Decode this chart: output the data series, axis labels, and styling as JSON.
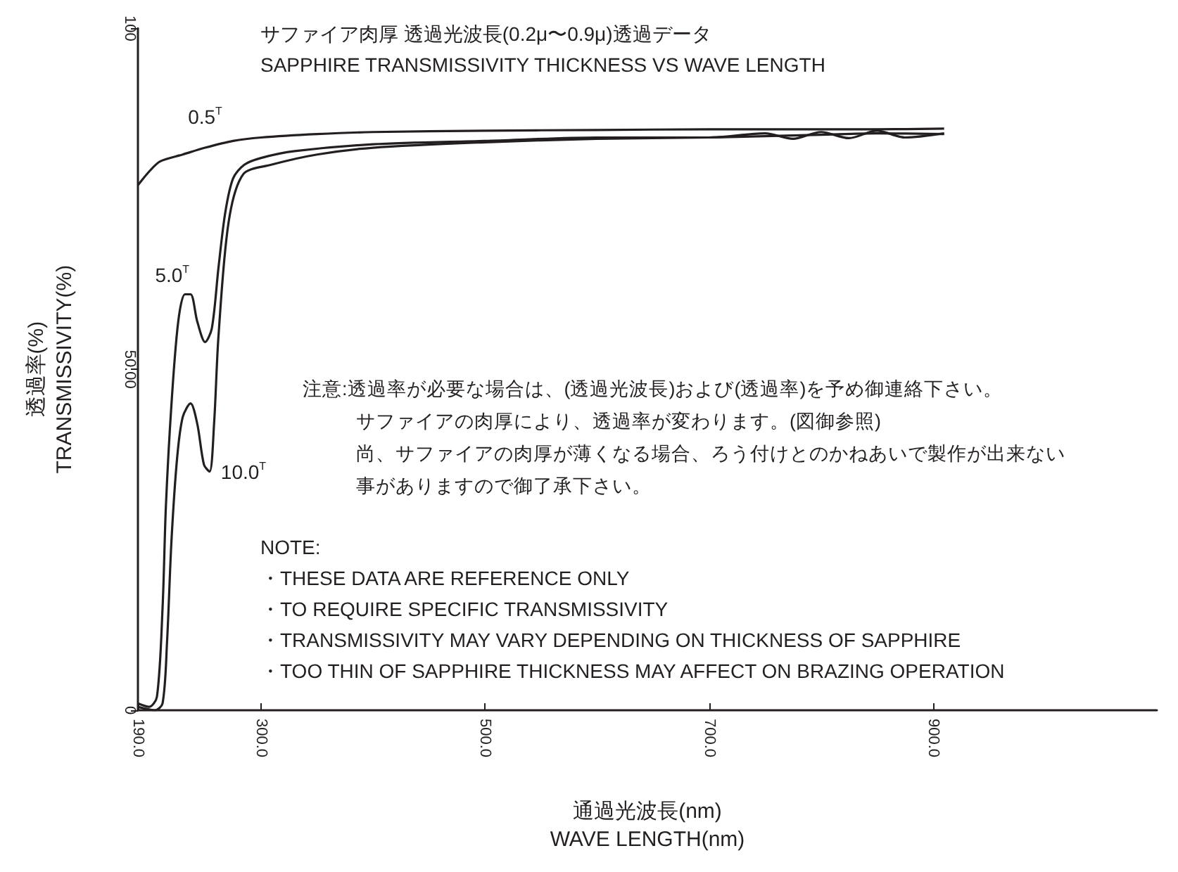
{
  "chart_data": {
    "type": "line",
    "title": "サファイア肉厚 透過光波長(0.2μ〜0.9μ)透過データ",
    "subtitle": "SAPPHIRE TRANSMISSIVITY THICKNESS VS WAVE LENGTH",
    "xlabel": "通過光波長(nm)\nWAVE LENGTH(nm)",
    "ylabel": "透過率(%)\nTRANSMISSIVITY(%)",
    "xlim": [
      190,
      1100
    ],
    "xticks": [
      {
        "value": 190,
        "label": "190.0"
      },
      {
        "value": 300,
        "label": "300.0"
      },
      {
        "value": 500,
        "label": "500.0"
      },
      {
        "value": 700,
        "label": "700.0"
      },
      {
        "value": 900,
        "label": "900.0"
      }
    ],
    "ylim": [
      0,
      100
    ],
    "yticks": [
      0,
      {
        "value": 50,
        "label": "50.00"
      },
      100
    ],
    "grid": false,
    "legend": false,
    "marker": "none",
    "series": [
      {
        "name": "0.5$^{T}$",
        "color": "#231f20",
        "x": [
          190,
          200,
          210,
          230,
          250,
          275,
          300,
          350,
          400,
          500,
          600,
          700,
          800,
          850,
          910
        ],
        "values": [
          77,
          79,
          80.5,
          81.5,
          82.5,
          83.5,
          84,
          84.5,
          84.8,
          85,
          85.1,
          85.2,
          85.2,
          85.2,
          85.3
        ]
      },
      {
        "name": "5.0$^{T}$",
        "color": "#231f20",
        "x": [
          190,
          200,
          207,
          212,
          215,
          220,
          226,
          232,
          237,
          243,
          250,
          256,
          262,
          268,
          275,
          285,
          300,
          330,
          400,
          500,
          600,
          700,
          750,
          775,
          800,
          825,
          850,
          875,
          910
        ],
        "values": [
          1,
          0.5,
          2,
          15,
          30,
          45,
          57,
          61,
          61,
          57,
          54,
          56,
          65,
          73,
          78,
          80,
          81,
          82,
          83,
          83.5,
          84,
          84,
          84.6,
          83.8,
          84.8,
          83.9,
          85,
          84,
          84.6
        ]
      },
      {
        "name": "10.0$^{T}$",
        "color": "#231f20",
        "x": [
          190,
          205,
          212,
          216,
          220,
          225,
          230,
          237,
          243,
          249,
          254,
          258,
          262,
          271,
          284,
          309,
          350,
          400,
          500,
          600,
          700,
          750,
          800,
          850,
          910
        ],
        "values": [
          0.5,
          0,
          1,
          10,
          25,
          37,
          43,
          45,
          42,
          36,
          35,
          42,
          55,
          71.6,
          78.6,
          80,
          81.5,
          82.5,
          83.3,
          83.8,
          84,
          84.2,
          84.4,
          84.6,
          84.5
        ]
      }
    ],
    "annotations": [
      "注意:透過率が必要な場合は、(透過光波長)および(透過率)を予め御連絡下さい。",
      "サファイアの肉厚により、透過率が変わります。(図御参照)",
      "尚、サファイアの肉厚が薄くなる場合、ろう付けとのかねあいで製作が出来ない",
      "事がありますので御了承下さい。",
      "NOTE:\n・THESE DATA ARE REFERENCE ONLY\n・TO REQUIRE SPECIFIC TRANSMISSIVITY\n・TRANSMISSIVITY MAY VARY DEPENDING ON THICKNESS OF SAPPHIRE\n・TOO THIN OF SAPPHIRE THICKNESS MAY AFFECT ON BRAZING OPERATION"
    ]
  }
}
